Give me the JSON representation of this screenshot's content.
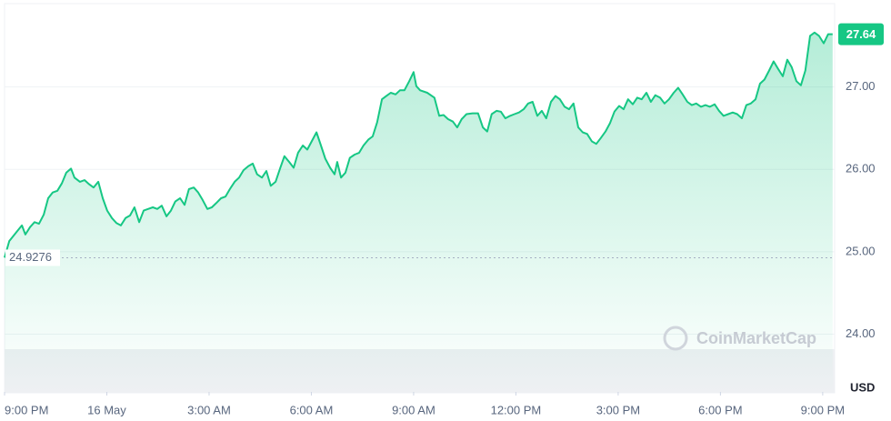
{
  "chart_data": {
    "type": "line",
    "color": "#16c784",
    "area": true,
    "grid": true,
    "currency": "USD",
    "watermark": "CoinMarketCap",
    "start_price": 24.9276,
    "current_price": 27.64,
    "x": [
      0,
      0.14,
      0.35,
      0.51,
      0.61,
      0.75,
      0.88,
      1.01,
      1.15,
      1.28,
      1.41,
      1.55,
      1.68,
      1.81,
      1.95,
      2.05,
      2.21,
      2.35,
      2.48,
      2.61,
      2.75,
      2.88,
      3.01,
      3.15,
      3.28,
      3.41,
      3.55,
      3.68,
      3.81,
      3.95,
      4.08,
      4.21,
      4.35,
      4.48,
      4.61,
      4.75,
      4.88,
      5.01,
      5.15,
      5.28,
      5.41,
      5.55,
      5.68,
      5.81,
      5.95,
      6.08,
      6.21,
      6.35,
      6.48,
      6.61,
      6.75,
      6.88,
      7.01,
      7.15,
      7.28,
      7.41,
      7.55,
      7.68,
      7.81,
      7.95,
      8.08,
      8.21,
      8.35,
      8.48,
      8.61,
      8.75,
      8.88,
      9.01,
      9.15,
      9.28,
      9.41,
      9.55,
      9.68,
      9.76,
      9.87,
      10,
      10.13,
      10.27,
      10.4,
      10.53,
      10.67,
      10.8,
      10.93,
      11.07,
      11.2,
      11.33,
      11.47,
      11.6,
      11.73,
      11.87,
      12,
      12.08,
      12.19,
      12.4,
      12.61,
      12.75,
      12.88,
      13.01,
      13.15,
      13.28,
      13.41,
      13.55,
      13.73,
      13.89,
      14.03,
      14.16,
      14.29,
      14.43,
      14.56,
      14.69,
      14.83,
      14.96,
      15.09,
      15.23,
      15.36,
      15.49,
      15.63,
      15.76,
      15.89,
      16.03,
      16.16,
      16.29,
      16.43,
      16.56,
      16.69,
      16.83,
      16.96,
      17.09,
      17.23,
      17.36,
      17.49,
      17.63,
      17.76,
      17.89,
      18.03,
      18.16,
      18.29,
      18.43,
      18.56,
      18.69,
      18.83,
      18.96,
      19.09,
      19.23,
      19.36,
      19.49,
      19.63,
      19.76,
      19.89,
      20.03,
      20.16,
      20.29,
      20.43,
      20.56,
      20.69,
      20.83,
      20.96,
      21.09,
      21.23,
      21.36,
      21.49,
      21.63,
      21.76,
      21.89,
      22.03,
      22.16,
      22.29,
      22.43,
      22.56,
      22.69,
      22.83,
      22.96,
      23.09,
      23.23,
      23.36,
      23.49,
      23.63,
      23.76,
      23.89,
      24.03,
      24.16,
      24.29
    ],
    "values": [
      24.93,
      25.13,
      25.24,
      25.32,
      25.21,
      25.3,
      25.36,
      25.34,
      25.45,
      25.65,
      25.72,
      25.74,
      25.83,
      25.96,
      26.01,
      25.9,
      25.85,
      25.87,
      25.82,
      25.78,
      25.85,
      25.65,
      25.5,
      25.41,
      25.35,
      25.32,
      25.41,
      25.44,
      25.54,
      25.36,
      25.5,
      25.52,
      25.54,
      25.52,
      25.56,
      25.43,
      25.5,
      25.61,
      25.65,
      25.57,
      25.76,
      25.78,
      25.72,
      25.63,
      25.52,
      25.54,
      25.59,
      25.65,
      25.67,
      25.76,
      25.85,
      25.9,
      25.99,
      26.04,
      26.07,
      25.94,
      25.9,
      25.98,
      25.8,
      25.85,
      26.01,
      26.16,
      26.09,
      26.02,
      26.2,
      26.29,
      26.24,
      26.34,
      26.45,
      26.29,
      26.13,
      26.02,
      25.94,
      26.09,
      25.9,
      25.96,
      26.14,
      26.18,
      26.2,
      26.29,
      26.36,
      26.4,
      26.57,
      26.85,
      26.89,
      26.93,
      26.91,
      26.96,
      26.96,
      27.07,
      27.18,
      27.01,
      26.96,
      26.93,
      26.87,
      26.65,
      26.66,
      26.61,
      26.58,
      26.51,
      26.61,
      26.67,
      26.68,
      26.68,
      26.51,
      26.46,
      26.67,
      26.71,
      26.7,
      26.62,
      26.65,
      26.67,
      26.69,
      26.73,
      26.8,
      26.82,
      26.65,
      26.71,
      26.62,
      26.82,
      26.89,
      26.85,
      26.76,
      26.73,
      26.8,
      26.51,
      26.45,
      26.43,
      26.34,
      26.31,
      26.38,
      26.46,
      26.56,
      26.7,
      26.77,
      26.73,
      26.85,
      26.79,
      26.87,
      26.85,
      26.93,
      26.82,
      26.9,
      26.87,
      26.8,
      26.85,
      26.93,
      26.99,
      26.91,
      26.82,
      26.78,
      26.8,
      26.76,
      26.78,
      26.76,
      26.79,
      26.71,
      26.65,
      26.67,
      26.69,
      26.67,
      26.62,
      26.78,
      26.8,
      26.85,
      27.04,
      27.09,
      27.2,
      27.31,
      27.22,
      27.13,
      27.33,
      27.24,
      27.07,
      27.02,
      27.2,
      27.62,
      27.66,
      27.62,
      27.53,
      27.64,
      27.64
    ],
    "xlim": [
      0,
      24.35
    ],
    "xticks": [
      {
        "value": 0,
        "label": "9:00 PM"
      },
      {
        "value": 3,
        "label": "16 May"
      },
      {
        "value": 6,
        "label": "3:00 AM"
      },
      {
        "value": 9,
        "label": "6:00 AM"
      },
      {
        "value": 12,
        "label": "9:00 AM"
      },
      {
        "value": 15,
        "label": "12:00 PM"
      },
      {
        "value": 18,
        "label": "3:00 PM"
      },
      {
        "value": 21,
        "label": "6:00 PM"
      },
      {
        "value": 24,
        "label": "9:00 PM"
      }
    ],
    "ylim": [
      23.3,
      28.0
    ],
    "yticks": [
      {
        "value": 24,
        "label": "24.00"
      },
      {
        "value": 25,
        "label": "25.00"
      },
      {
        "value": 26,
        "label": "26.00"
      },
      {
        "value": 27,
        "label": "27.00"
      }
    ]
  }
}
